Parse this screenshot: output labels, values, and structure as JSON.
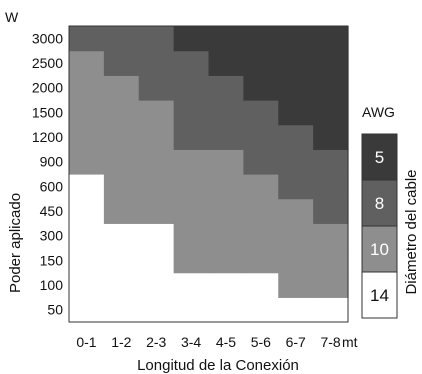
{
  "chart_data": {
    "type": "heatmap",
    "y_unit": "W",
    "x_unit": "mt",
    "xlabel": "Longitud de la Conexión",
    "ylabel": "Poder aplicado",
    "x_categories": [
      "0-1",
      "1-2",
      "2-3",
      "3-4",
      "4-5",
      "5-6",
      "6-7",
      "7-8"
    ],
    "y_categories": [
      "50",
      "100",
      "150",
      "300",
      "450",
      "600",
      "900",
      "1200",
      "1500",
      "2000",
      "2500",
      "3000"
    ],
    "awg_rows_bottom_to_top": [
      [
        14,
        14,
        14,
        14,
        14,
        14,
        14,
        14
      ],
      [
        14,
        14,
        14,
        14,
        14,
        14,
        10,
        10
      ],
      [
        14,
        14,
        14,
        10,
        10,
        10,
        10,
        10
      ],
      [
        14,
        14,
        14,
        10,
        10,
        10,
        10,
        10
      ],
      [
        14,
        10,
        10,
        10,
        10,
        10,
        10,
        8
      ],
      [
        14,
        10,
        10,
        10,
        10,
        10,
        8,
        8
      ],
      [
        10,
        10,
        10,
        10,
        10,
        8,
        8,
        8
      ],
      [
        10,
        10,
        10,
        8,
        8,
        8,
        8,
        5
      ],
      [
        10,
        10,
        10,
        8,
        8,
        8,
        5,
        5
      ],
      [
        10,
        10,
        8,
        8,
        8,
        5,
        5,
        5
      ],
      [
        10,
        8,
        8,
        8,
        5,
        5,
        5,
        5
      ],
      [
        8,
        8,
        8,
        5,
        5,
        5,
        5,
        5
      ]
    ],
    "legend": {
      "title": "AWG",
      "axis_label": "Diámetro del cable",
      "items": [
        {
          "value": "5",
          "color": "#3a3a3a",
          "text_color": "#ffffff"
        },
        {
          "value": "8",
          "color": "#606060",
          "text_color": "#ffffff"
        },
        {
          "value": "10",
          "color": "#8e8e8e",
          "text_color": "#ffffff"
        },
        {
          "value": "14",
          "color": "#ffffff",
          "text_color": "#111111"
        }
      ]
    }
  }
}
